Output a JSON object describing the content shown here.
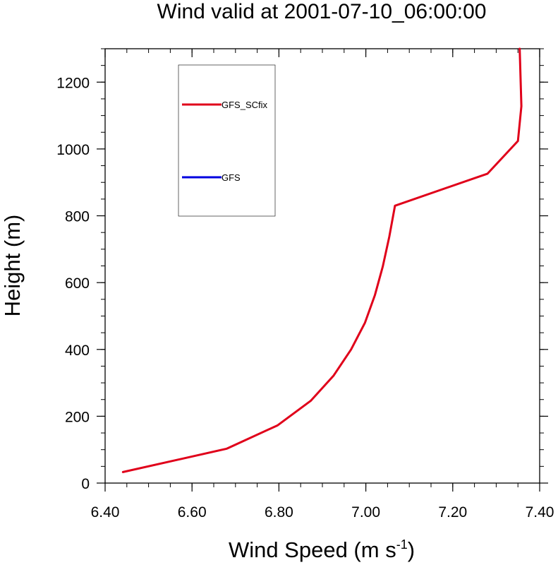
{
  "chart_data": {
    "type": "line",
    "title": "Wind valid at 2001-07-10_06:00:00",
    "xlabel": "Wind Speed (m s",
    "xlabel_superscript": "-1",
    "xlabel_suffix": ")",
    "ylabel": "Height (m)",
    "xlim": [
      6.4,
      7.4
    ],
    "ylim": [
      0,
      1300
    ],
    "x_ticks": [
      6.4,
      6.6,
      6.8,
      7.0,
      7.2,
      7.4
    ],
    "x_tick_labels": [
      "6.40",
      "6.60",
      "6.80",
      "7.00",
      "7.20",
      "7.40"
    ],
    "y_ticks": [
      0,
      200,
      400,
      600,
      800,
      1000,
      1200
    ],
    "y_tick_labels": [
      "0",
      "200",
      "400",
      "600",
      "800",
      "1000",
      "1200"
    ],
    "grid": false,
    "legend_position": "top-left",
    "series": [
      {
        "name": "GFS_SCfix",
        "color": "#e0001a",
        "points": [
          [
            6.441,
            33
          ],
          [
            6.68,
            103
          ],
          [
            6.797,
            173
          ],
          [
            6.873,
            246
          ],
          [
            6.926,
            322
          ],
          [
            6.966,
            400
          ],
          [
            6.998,
            480
          ],
          [
            7.021,
            563
          ],
          [
            7.039,
            648
          ],
          [
            7.054,
            738
          ],
          [
            7.067,
            830
          ],
          [
            7.28,
            926
          ],
          [
            7.35,
            1024
          ],
          [
            7.358,
            1128
          ],
          [
            7.354,
            1300
          ]
        ]
      },
      {
        "name": "GFS",
        "color": "#0000e0",
        "points": []
      }
    ]
  }
}
